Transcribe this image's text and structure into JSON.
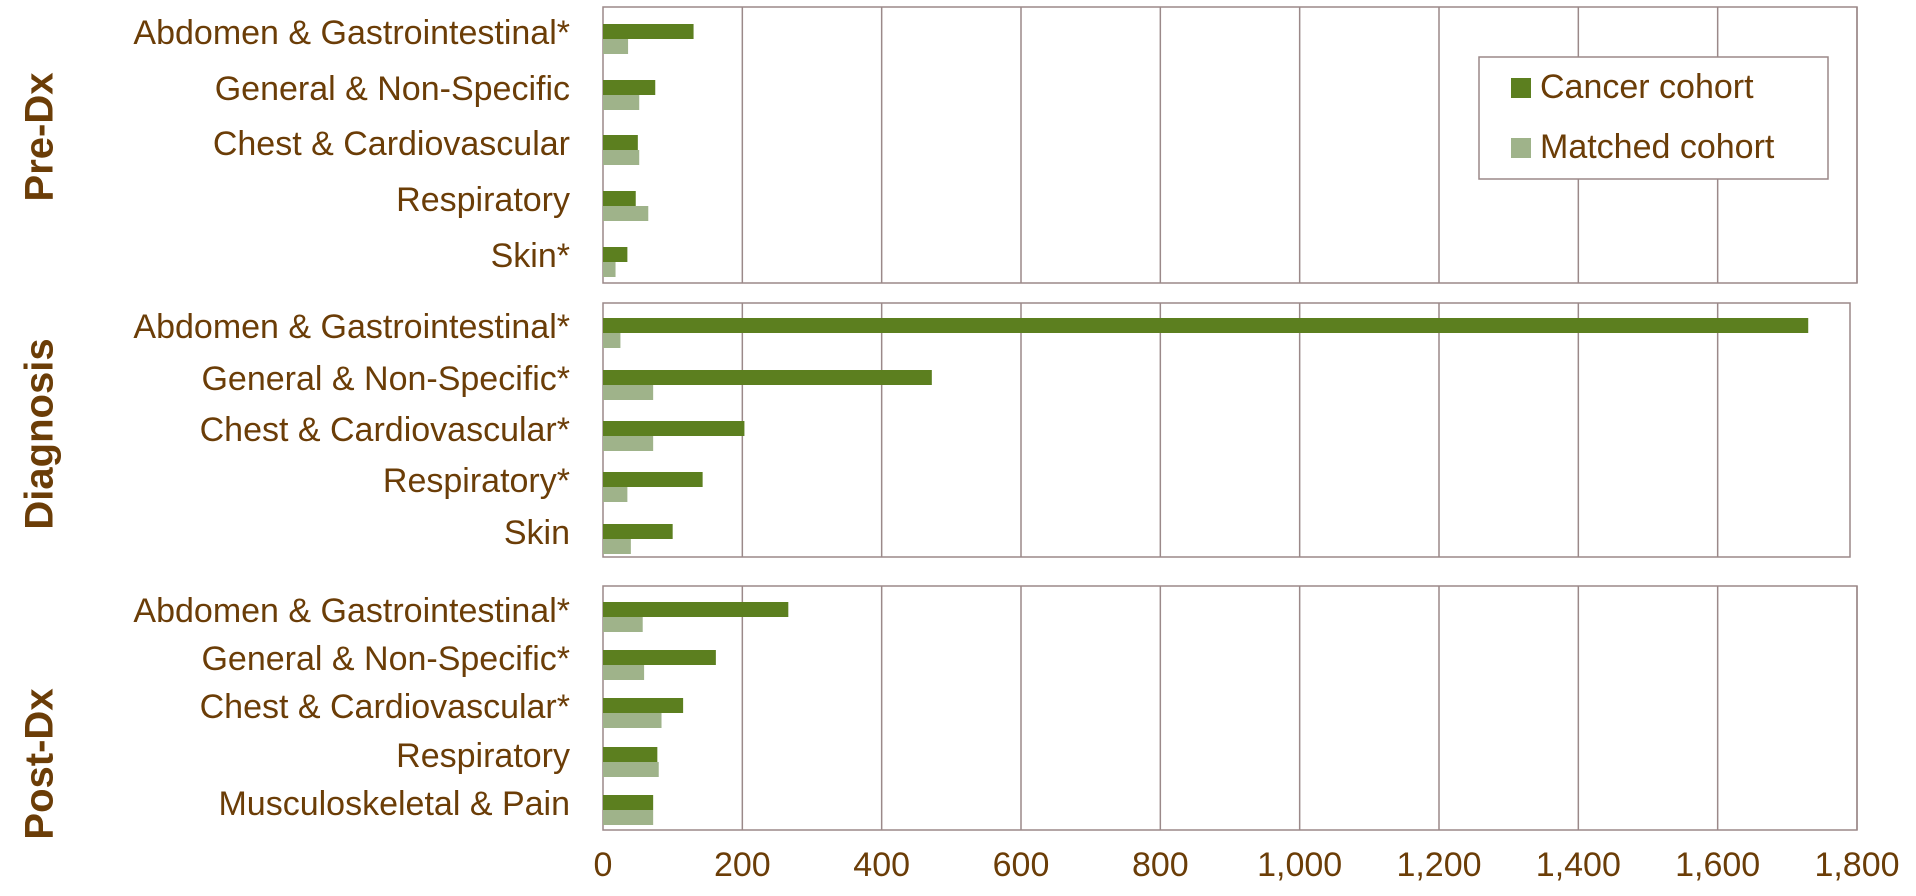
{
  "colors": {
    "cancer": "#5c7f1f",
    "matched": "#9fb38a",
    "text": "#6b3d07",
    "grid": "#9b8989",
    "frame": "#9b8989"
  },
  "legend": {
    "placement": "top-right",
    "items": [
      {
        "label": "Cancer cohort",
        "color": "#5c7f1f"
      },
      {
        "label": "Matched cohort",
        "color": "#9fb38a"
      }
    ]
  },
  "chart_data": {
    "type": "bar",
    "orientation": "horizontal",
    "xlim": [
      0,
      1800
    ],
    "xticks": [
      "0",
      "200",
      "400",
      "600",
      "800",
      "1,000",
      "1,200",
      "1,400",
      "1,600",
      "1,800"
    ],
    "grid": true,
    "series_names": [
      "Cancer cohort",
      "Matched cohort"
    ],
    "panels": [
      {
        "label": "Pre-Dx",
        "categories": [
          "Abdomen & Gastrointestinal*",
          "General & Non-Specific",
          "Chest & Cardiovascular",
          "Respiratory",
          "Skin*"
        ],
        "series": [
          {
            "name": "Cancer cohort",
            "values": [
              130,
              75,
              50,
              47,
              35
            ]
          },
          {
            "name": "Matched cohort",
            "values": [
              36,
              52,
              52,
              65,
              18
            ]
          }
        ]
      },
      {
        "label": "Diagnosis",
        "categories": [
          "Abdomen & Gastrointestinal*",
          "General & Non-Specific*",
          "Chest & Cardiovascular*",
          "Respiratory*",
          "Skin"
        ],
        "series": [
          {
            "name": "Cancer cohort",
            "values": [
              1730,
              472,
              203,
              143,
              100
            ]
          },
          {
            "name": "Matched cohort",
            "values": [
              25,
              72,
              72,
              35,
              40
            ]
          }
        ]
      },
      {
        "label": "Post-Dx",
        "categories": [
          "Abdomen & Gastrointestinal*",
          "General & Non-Specific*",
          "Chest & Cardiovascular*",
          "Respiratory",
          "Musculoskeletal & Pain"
        ],
        "series": [
          {
            "name": "Cancer cohort",
            "values": [
              266,
              162,
              115,
              78,
              72
            ]
          },
          {
            "name": "Matched cohort",
            "values": [
              57,
              59,
              84,
              80,
              72
            ]
          }
        ]
      }
    ]
  }
}
